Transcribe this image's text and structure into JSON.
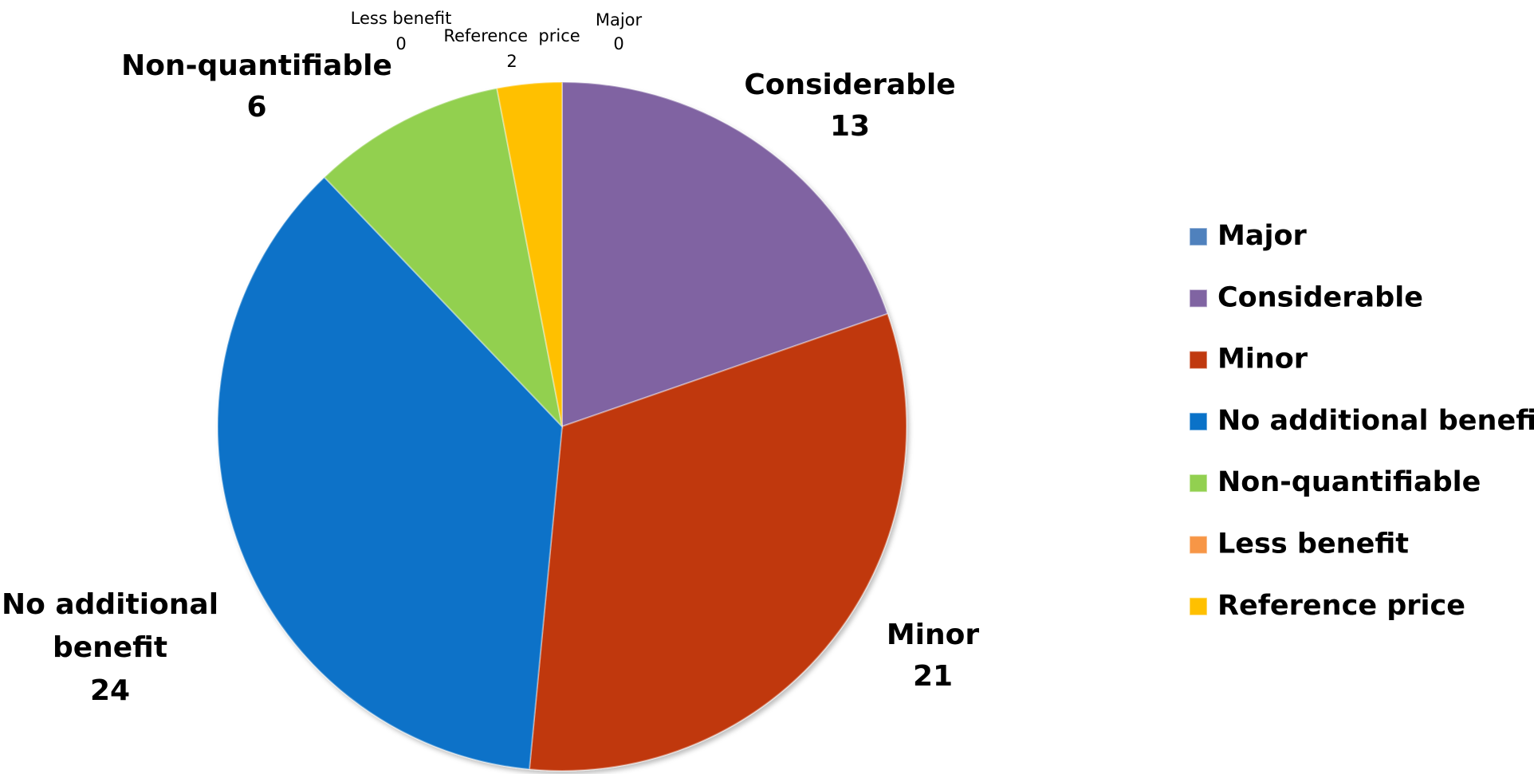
{
  "chart_data": {
    "type": "pie",
    "title": "",
    "categories": [
      "Major",
      "Considerable",
      "Minor",
      "No additional benefit",
      "Non-quantifiable",
      "Less benefit",
      "Reference price"
    ],
    "values": [
      0,
      13,
      21,
      24,
      6,
      0,
      2
    ],
    "slice_order": [
      "Major",
      "Considerable",
      "Minor",
      "No additional benefit",
      "Non-quantifiable",
      "Less benefit",
      "Reference price"
    ],
    "colors": {
      "Major": "#4f81bd",
      "Considerable": "#8064a2",
      "Minor": "#c0390f",
      "No additional benefit": "#0a72c8",
      "Non-quantifiable": "#92d050",
      "Less benefit": "#f79646",
      "Reference price": "#ffc000"
    },
    "data_labels": [
      {
        "name": "Major",
        "lines": [
          "Major",
          "0"
        ],
        "size": "small"
      },
      {
        "name": "Considerable",
        "lines": [
          "Considerable",
          "13"
        ],
        "size": "big"
      },
      {
        "name": "Minor",
        "lines": [
          "Minor",
          "21"
        ],
        "size": "big"
      },
      {
        "name": "No additional benefit",
        "lines": [
          "No additional",
          "benefit",
          "24"
        ],
        "size": "big"
      },
      {
        "name": "Non-quantifiable",
        "lines": [
          "Non-quantifiable",
          "6"
        ],
        "size": "big"
      },
      {
        "name": "Less benefit",
        "lines": [
          "Less benefit",
          "0"
        ],
        "size": "small"
      },
      {
        "name": "Reference price",
        "lines": [
          "Reference  price",
          "2"
        ],
        "size": "small"
      }
    ],
    "legend": {
      "position": "right",
      "entries": [
        "Major",
        "Considerable",
        "Minor",
        "No additional benefit",
        "Non-quantifiable",
        "Less benefit",
        "Reference price"
      ]
    }
  }
}
